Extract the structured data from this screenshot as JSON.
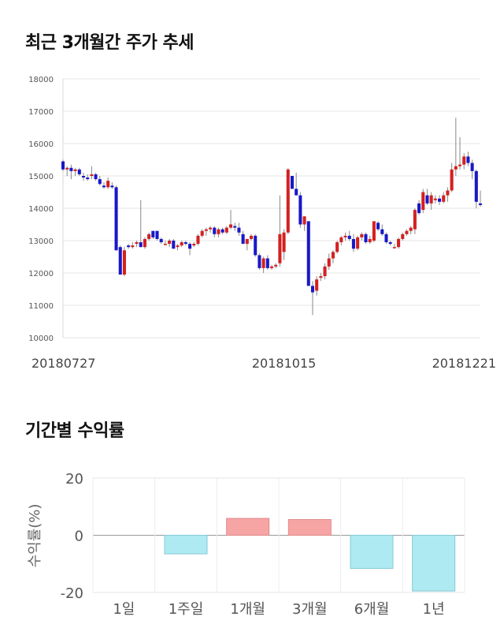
{
  "sections": {
    "price_title": "최근 3개월간 주가 추세",
    "returns_title": "기간별 수익률"
  },
  "chart_data": [
    {
      "type": "candlestick",
      "title": "최근 3개월간 주가 추세",
      "ylim": [
        10000,
        18000
      ],
      "yticks": [
        10000,
        11000,
        12000,
        13000,
        14000,
        15000,
        16000,
        17000,
        18000
      ],
      "x_tick_labels": [
        "20180727",
        "20181015",
        "20181221"
      ],
      "x_tick_index": [
        0,
        54,
        105
      ],
      "grid": true,
      "colors": {
        "up": "#d42020",
        "down": "#1818c8",
        "wick": "#888888",
        "grid": "#e6e6e6"
      },
      "candles": [
        [
          15450,
          15500,
          15150,
          15200
        ],
        [
          15200,
          15300,
          15000,
          15250
        ],
        [
          15250,
          15350,
          14900,
          15150
        ],
        [
          15150,
          15250,
          15000,
          15200
        ],
        [
          15200,
          15250,
          15000,
          15050
        ],
        [
          15000,
          15100,
          14850,
          14950
        ],
        [
          14950,
          15050,
          14850,
          14900
        ],
        [
          15000,
          15300,
          14900,
          15050
        ],
        [
          15050,
          15100,
          14850,
          14900
        ],
        [
          14900,
          15000,
          14700,
          14750
        ],
        [
          14700,
          14800,
          14600,
          14650
        ],
        [
          14650,
          14950,
          14600,
          14850
        ],
        [
          14700,
          14800,
          14600,
          14650
        ],
        [
          14650,
          14700,
          12700,
          12700
        ],
        [
          12800,
          12850,
          11950,
          11950
        ],
        [
          11950,
          12800,
          11900,
          12700
        ],
        [
          12850,
          12900,
          12750,
          12800
        ],
        [
          12800,
          12950,
          12750,
          12850
        ],
        [
          12900,
          13000,
          12800,
          12950
        ],
        [
          12950,
          14250,
          12800,
          12800
        ],
        [
          12800,
          13100,
          12750,
          13050
        ],
        [
          13050,
          13250,
          13000,
          13200
        ],
        [
          13300,
          13300,
          13050,
          13100
        ],
        [
          13300,
          13300,
          13000,
          13050
        ],
        [
          13050,
          13100,
          12900,
          12950
        ],
        [
          12900,
          13000,
          12850,
          12900
        ],
        [
          12900,
          13050,
          12800,
          13000
        ],
        [
          13000,
          13050,
          12750,
          12750
        ],
        [
          12800,
          12900,
          12700,
          12850
        ],
        [
          12850,
          13000,
          12800,
          12950
        ],
        [
          12950,
          13000,
          12850,
          12900
        ],
        [
          12900,
          12950,
          12550,
          12750
        ],
        [
          12850,
          12950,
          12800,
          12900
        ],
        [
          12900,
          13200,
          12850,
          13150
        ],
        [
          13150,
          13350,
          13100,
          13300
        ],
        [
          13300,
          13400,
          13150,
          13350
        ],
        [
          13350,
          13450,
          13250,
          13400
        ],
        [
          13400,
          13450,
          13100,
          13200
        ],
        [
          13200,
          13400,
          13100,
          13350
        ],
        [
          13350,
          13400,
          13200,
          13250
        ],
        [
          13250,
          13450,
          13200,
          13400
        ],
        [
          13400,
          13950,
          13350,
          13500
        ],
        [
          13450,
          13550,
          13300,
          13400
        ],
        [
          13400,
          13550,
          13150,
          13250
        ],
        [
          13200,
          13300,
          12900,
          12900
        ],
        [
          12900,
          13050,
          12700,
          13050
        ],
        [
          13050,
          13200,
          13000,
          13150
        ],
        [
          13150,
          13200,
          12500,
          12550
        ],
        [
          12550,
          12600,
          12100,
          12150
        ],
        [
          12150,
          12500,
          12000,
          12450
        ],
        [
          12450,
          12550,
          12100,
          12150
        ],
        [
          12150,
          12250,
          12100,
          12200
        ],
        [
          12200,
          12300,
          12150,
          12250
        ],
        [
          12300,
          14400,
          12200,
          13200
        ],
        [
          12650,
          13350,
          12400,
          13250
        ],
        [
          13250,
          15250,
          13200,
          15200
        ],
        [
          15000,
          15000,
          14600,
          14600
        ],
        [
          14600,
          15100,
          14400,
          14400
        ],
        [
          14400,
          14500,
          13400,
          13500
        ],
        [
          13500,
          13750,
          13300,
          13750
        ],
        [
          13600,
          13600,
          11600,
          11600
        ],
        [
          11600,
          11750,
          10700,
          11400
        ],
        [
          11450,
          11900,
          11300,
          11800
        ],
        [
          11850,
          12000,
          11750,
          11900
        ],
        [
          11900,
          12300,
          11800,
          12200
        ],
        [
          12200,
          12600,
          12100,
          12450
        ],
        [
          12450,
          12700,
          12300,
          12650
        ],
        [
          12650,
          13000,
          12600,
          12950
        ],
        [
          12950,
          13150,
          12850,
          13100
        ],
        [
          13100,
          13250,
          13000,
          13150
        ],
        [
          13150,
          13300,
          13000,
          13050
        ],
        [
          13050,
          13200,
          12650,
          12750
        ],
        [
          12750,
          13150,
          12700,
          13100
        ],
        [
          13100,
          13250,
          13000,
          13200
        ],
        [
          13200,
          13250,
          12900,
          12950
        ],
        [
          12950,
          13150,
          12900,
          13050
        ],
        [
          13000,
          13600,
          12950,
          13600
        ],
        [
          13550,
          13600,
          13300,
          13350
        ],
        [
          13350,
          13500,
          13150,
          13200
        ],
        [
          13200,
          13250,
          12900,
          12950
        ],
        [
          12950,
          13000,
          12850,
          12900
        ],
        [
          12800,
          12900,
          12750,
          12800
        ],
        [
          12800,
          13100,
          12750,
          13050
        ],
        [
          13050,
          13250,
          13000,
          13200
        ],
        [
          13200,
          13350,
          13150,
          13300
        ],
        [
          13300,
          13450,
          13200,
          13400
        ],
        [
          13350,
          14000,
          13200,
          13950
        ],
        [
          14150,
          14250,
          13800,
          13850
        ],
        [
          13950,
          14600,
          13850,
          14500
        ],
        [
          14400,
          14600,
          14100,
          14150
        ],
        [
          14150,
          14500,
          13950,
          14400
        ],
        [
          14250,
          14400,
          14150,
          14300
        ],
        [
          14300,
          14400,
          14100,
          14200
        ],
        [
          14200,
          14500,
          14150,
          14400
        ],
        [
          14400,
          14650,
          14200,
          14550
        ],
        [
          14550,
          15400,
          14500,
          15200
        ],
        [
          15200,
          16800,
          15000,
          15300
        ],
        [
          15300,
          16200,
          15200,
          15350
        ],
        [
          15350,
          15700,
          15200,
          15600
        ],
        [
          15600,
          15750,
          15300,
          15400
        ],
        [
          15400,
          15500,
          14900,
          15150
        ],
        [
          15150,
          15200,
          14000,
          14200
        ],
        [
          14150,
          14550,
          14050,
          14100
        ]
      ]
    },
    {
      "type": "bar",
      "categories": [
        "1일",
        "1주일",
        "1개월",
        "3개월",
        "6개월",
        "1년"
      ],
      "values": [
        0.0,
        -6.5,
        5.9,
        5.5,
        -11.6,
        -19.5
      ],
      "ylabel": "수익률(%)",
      "ylim": [
        -20,
        20
      ],
      "yticks": [
        20,
        0,
        -20
      ],
      "grid": true,
      "colors": {
        "positive": "#f7a4a4",
        "negative": "#aeeaf2",
        "positive_edge": "#e08a8a",
        "negative_edge": "#86c9d6"
      }
    }
  ]
}
